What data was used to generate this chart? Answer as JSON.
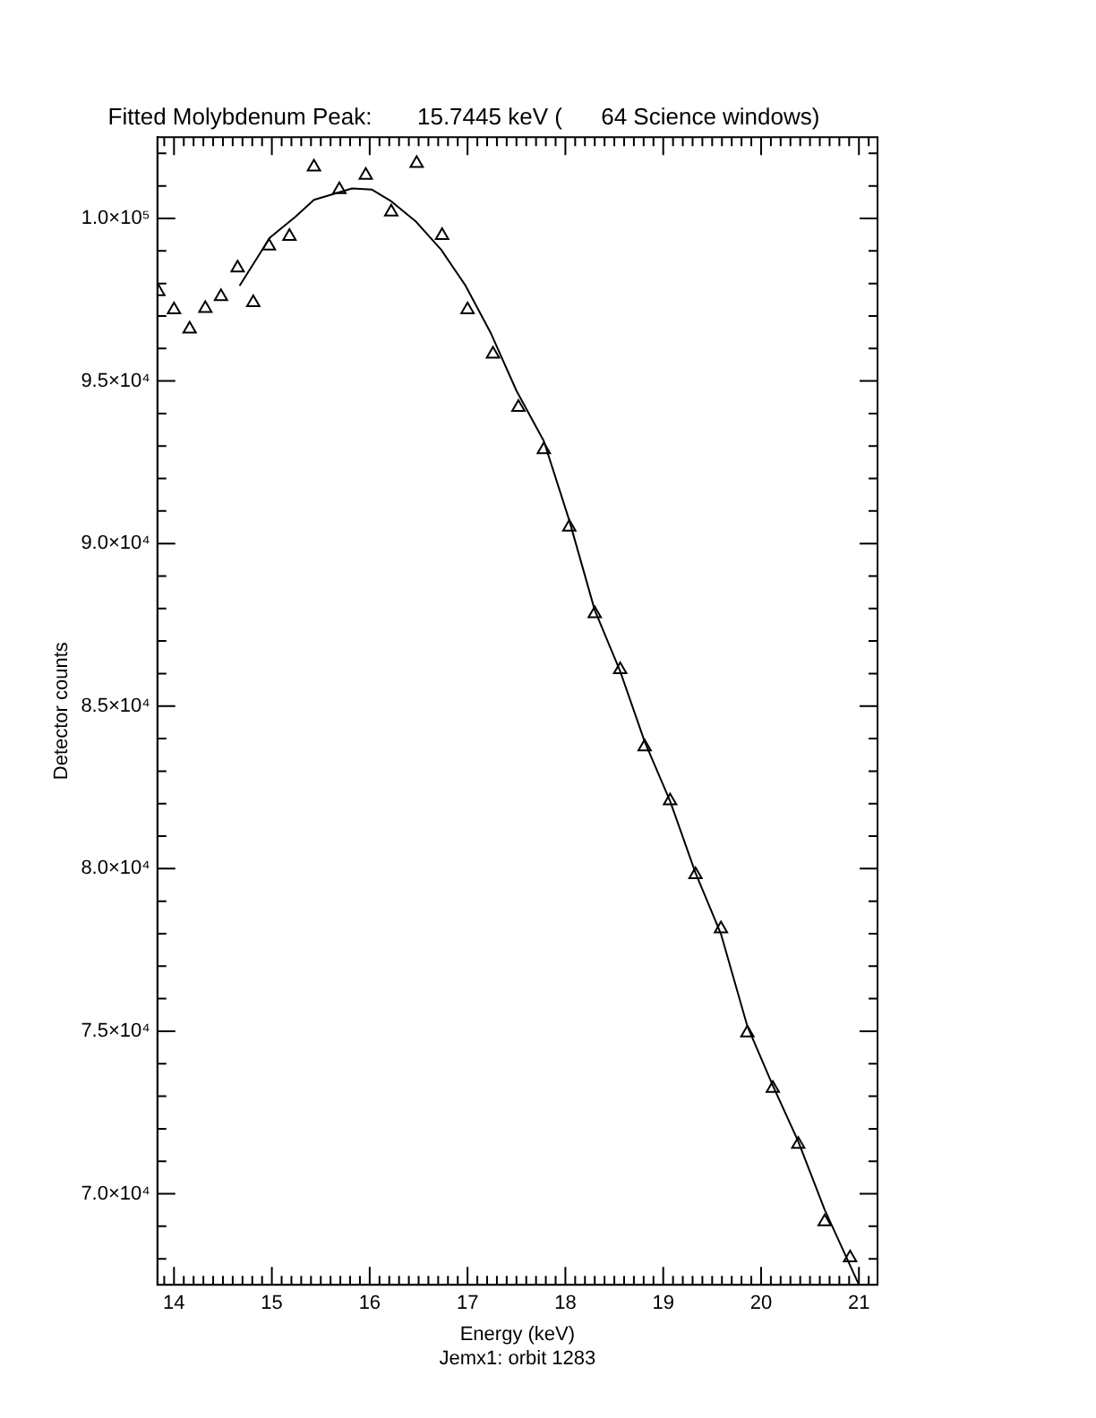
{
  "chart_data": {
    "type": "scatter",
    "title": "Fitted Molybdenum Peak:       15.7445 keV (      64 Science windows)",
    "xlabel": "Energy (keV)",
    "ylabel": "Detector counts",
    "annotations": [
      "Jemx1: orbit 1283"
    ],
    "legend": false,
    "grid": false,
    "xlim": [
      13.83,
      21.19
    ],
    "ylim": [
      67200,
      102500
    ],
    "xticks": [
      {
        "value": 13.9,
        "label": null
      },
      14,
      {
        "value": 14.1,
        "label": null
      },
      {
        "value": 14.2,
        "label": null
      },
      {
        "value": 14.3,
        "label": null
      },
      {
        "value": 14.4,
        "label": null
      },
      {
        "value": 14.5,
        "label": null
      },
      {
        "value": 14.6,
        "label": null
      },
      {
        "value": 14.7,
        "label": null
      },
      {
        "value": 14.8,
        "label": null
      },
      {
        "value": 14.9,
        "label": null
      },
      15,
      {
        "value": 15.1,
        "label": null
      },
      {
        "value": 15.2,
        "label": null
      },
      {
        "value": 15.3,
        "label": null
      },
      {
        "value": 15.4,
        "label": null
      },
      {
        "value": 15.5,
        "label": null
      },
      {
        "value": 15.6,
        "label": null
      },
      {
        "value": 15.7,
        "label": null
      },
      {
        "value": 15.8,
        "label": null
      },
      {
        "value": 15.9,
        "label": null
      },
      16,
      {
        "value": 16.1,
        "label": null
      },
      {
        "value": 16.2,
        "label": null
      },
      {
        "value": 16.3,
        "label": null
      },
      {
        "value": 16.4,
        "label": null
      },
      {
        "value": 16.5,
        "label": null
      },
      {
        "value": 16.6,
        "label": null
      },
      {
        "value": 16.7,
        "label": null
      },
      {
        "value": 16.8,
        "label": null
      },
      {
        "value": 16.9,
        "label": null
      },
      17,
      {
        "value": 17.1,
        "label": null
      },
      {
        "value": 17.2,
        "label": null
      },
      {
        "value": 17.3,
        "label": null
      },
      {
        "value": 17.4,
        "label": null
      },
      {
        "value": 17.5,
        "label": null
      },
      {
        "value": 17.6,
        "label": null
      },
      {
        "value": 17.7,
        "label": null
      },
      {
        "value": 17.8,
        "label": null
      },
      {
        "value": 17.9,
        "label": null
      },
      18,
      {
        "value": 18.1,
        "label": null
      },
      {
        "value": 18.2,
        "label": null
      },
      {
        "value": 18.3,
        "label": null
      },
      {
        "value": 18.4,
        "label": null
      },
      {
        "value": 18.5,
        "label": null
      },
      {
        "value": 18.6,
        "label": null
      },
      {
        "value": 18.7,
        "label": null
      },
      {
        "value": 18.8,
        "label": null
      },
      {
        "value": 18.9,
        "label": null
      },
      19,
      {
        "value": 19.1,
        "label": null
      },
      {
        "value": 19.2,
        "label": null
      },
      {
        "value": 19.3,
        "label": null
      },
      {
        "value": 19.4,
        "label": null
      },
      {
        "value": 19.5,
        "label": null
      },
      {
        "value": 19.6,
        "label": null
      },
      {
        "value": 19.7,
        "label": null
      },
      {
        "value": 19.8,
        "label": null
      },
      {
        "value": 19.9,
        "label": null
      },
      20,
      {
        "value": 20.1,
        "label": null
      },
      {
        "value": 20.2,
        "label": null
      },
      {
        "value": 20.3,
        "label": null
      },
      {
        "value": 20.4,
        "label": null
      },
      {
        "value": 20.5,
        "label": null
      },
      {
        "value": 20.6,
        "label": null
      },
      {
        "value": 20.7,
        "label": null
      },
      {
        "value": 20.8,
        "label": null
      },
      {
        "value": 20.9,
        "label": null
      },
      21,
      {
        "value": 21.1,
        "label": null
      }
    ],
    "yticks": [
      {
        "value": 68000,
        "label": null
      },
      {
        "value": 69000,
        "label": null
      },
      {
        "value": 70000,
        "label": "7.0×10⁴"
      },
      {
        "value": 71000,
        "label": null
      },
      {
        "value": 72000,
        "label": null
      },
      {
        "value": 73000,
        "label": null
      },
      {
        "value": 74000,
        "label": null
      },
      {
        "value": 75000,
        "label": "7.5×10⁴"
      },
      {
        "value": 76000,
        "label": null
      },
      {
        "value": 77000,
        "label": null
      },
      {
        "value": 78000,
        "label": null
      },
      {
        "value": 79000,
        "label": null
      },
      {
        "value": 80000,
        "label": "8.0×10⁴"
      },
      {
        "value": 81000,
        "label": null
      },
      {
        "value": 82000,
        "label": null
      },
      {
        "value": 83000,
        "label": null
      },
      {
        "value": 84000,
        "label": null
      },
      {
        "value": 85000,
        "label": "8.5×10⁴"
      },
      {
        "value": 86000,
        "label": null
      },
      {
        "value": 87000,
        "label": null
      },
      {
        "value": 88000,
        "label": null
      },
      {
        "value": 89000,
        "label": null
      },
      {
        "value": 90000,
        "label": "9.0×10⁴"
      },
      {
        "value": 91000,
        "label": null
      },
      {
        "value": 92000,
        "label": null
      },
      {
        "value": 93000,
        "label": null
      },
      {
        "value": 94000,
        "label": null
      },
      {
        "value": 95000,
        "label": "9.5×10⁴"
      },
      {
        "value": 96000,
        "label": null
      },
      {
        "value": 97000,
        "label": null
      },
      {
        "value": 98000,
        "label": null
      },
      {
        "value": 99000,
        "label": null
      },
      {
        "value": 100000,
        "label": "1.0×10⁵"
      },
      {
        "value": 101000,
        "label": null
      },
      {
        "value": 102000,
        "label": null
      }
    ],
    "series": [
      {
        "color": "#000000",
        "marker": "triangle",
        "x": [
          13.84,
          14.0,
          14.16,
          14.32,
          14.48,
          14.65,
          14.81,
          14.97,
          15.18,
          15.43,
          15.69,
          15.96,
          16.22,
          16.48,
          16.74,
          17.0,
          17.26,
          17.52,
          17.78,
          18.04,
          18.3,
          18.56,
          18.81,
          19.07,
          19.33,
          19.59,
          19.86,
          20.12,
          20.38,
          20.65,
          20.91
        ],
        "values": [
          97750,
          97190,
          96600,
          97230,
          97600,
          98480,
          97410,
          99150,
          99450,
          101580,
          100890,
          101330,
          100200,
          101690,
          99480,
          97190,
          95830,
          94190,
          92890,
          90510,
          87840,
          86120,
          83750,
          82090,
          79820,
          78150,
          74950,
          73240,
          71520,
          69140,
          68030
        ]
      },
      {
        "type": "line",
        "color": "#000000",
        "marker": "none",
        "line_style": "solid",
        "x": [
          14.67,
          14.98,
          15.24,
          15.43,
          15.82,
          16.02,
          16.21,
          16.47,
          16.73,
          16.98,
          17.24,
          17.5,
          17.78,
          18.04,
          18.3,
          18.56,
          18.81,
          19.07,
          19.33,
          19.59,
          19.86,
          20.12,
          20.38,
          20.65,
          21.0
        ],
        "values": [
          97930,
          99410,
          100050,
          100570,
          100920,
          100890,
          100550,
          99910,
          99040,
          97930,
          96460,
          94700,
          93150,
          90710,
          87950,
          86070,
          83910,
          82080,
          79870,
          77990,
          75150,
          73330,
          71610,
          69510,
          67200
        ]
      }
    ]
  }
}
